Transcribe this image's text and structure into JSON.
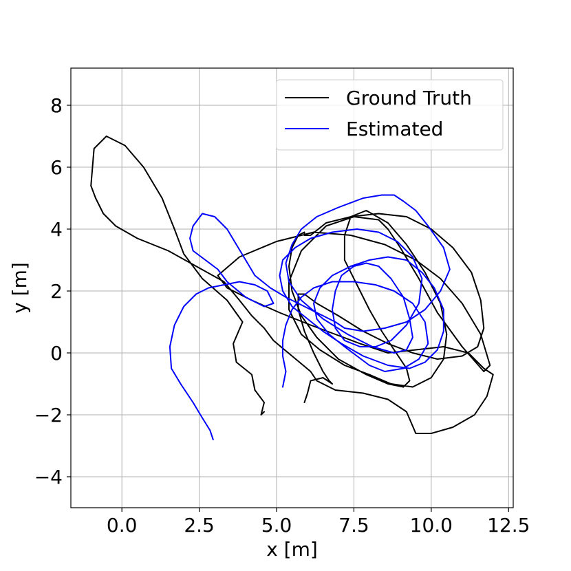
{
  "chart_data": {
    "type": "line",
    "title": "",
    "xlabel": "x [m]",
    "ylabel": "y [m]",
    "xlim": [
      -1.65,
      12.65
    ],
    "ylim": [
      -5.0,
      9.2
    ],
    "xticks": [
      0.0,
      2.5,
      5.0,
      7.5,
      10.0,
      12.5
    ],
    "xtick_labels": [
      "0.0",
      "2.5",
      "5.0",
      "7.5",
      "10.0",
      "12.5"
    ],
    "yticks": [
      -4,
      -2,
      0,
      2,
      4,
      6,
      8
    ],
    "ytick_labels": [
      "−4",
      "−2",
      "0",
      "2",
      "4",
      "6",
      "8"
    ],
    "grid": true,
    "legend_position": "top-right",
    "series": [
      {
        "name": "Ground Truth",
        "color": "#000000",
        "x": [
          4.6,
          4.5,
          4.6,
          4.3,
          4.2,
          3.7,
          3.6,
          3.9,
          3.4,
          2.6,
          2.0,
          1.7,
          1.3,
          0.7,
          0.1,
          -0.5,
          -0.9,
          -1.0,
          -0.85,
          -0.6,
          -0.2,
          0.5,
          1.5,
          2.4,
          3.3,
          3.8,
          4.2,
          4.6,
          4.9,
          5.5,
          6.1,
          6.3,
          6.9,
          7.8,
          8.6,
          9.2,
          9.5,
          10.0,
          10.7,
          11.4,
          11.8,
          12.0,
          11.7,
          11.2,
          10.4,
          9.5,
          8.6,
          7.7,
          6.9,
          6.1,
          5.1,
          4.2,
          3.4,
          3.1,
          3.8,
          5.0,
          6.2,
          7.4,
          8.5,
          9.5,
          10.3,
          11.0,
          11.6,
          11.9,
          11.7,
          11.0,
          10.2,
          9.6,
          9.0,
          8.6,
          8.3,
          7.5,
          6.6,
          5.8,
          5.4,
          5.4,
          5.8,
          6.4,
          7.2,
          8.0,
          8.7,
          9.4,
          10.0,
          10.4,
          10.5,
          10.3,
          9.8,
          9.2,
          8.6,
          7.9,
          7.4,
          7.2,
          7.2,
          7.6,
          8.0,
          8.4,
          8.8,
          9.2,
          9.3,
          9.1,
          8.6,
          7.9,
          7.0,
          6.3,
          5.8,
          5.5,
          5.4,
          5.5,
          5.7,
          5.9,
          5.9,
          6.1,
          6.6,
          7.4,
          8.3,
          9.2,
          10.0,
          10.7,
          11.3,
          11.6,
          11.7,
          11.5,
          11.0,
          10.2,
          9.4,
          8.6,
          7.8,
          7.0,
          6.3,
          5.9,
          5.7,
          5.7,
          5.9,
          6.2,
          6.5,
          6.7,
          6.8,
          6.5,
          6.1,
          6.0,
          5.9
        ],
        "y": [
          -1.9,
          -2.0,
          -1.6,
          -1.2,
          -0.7,
          -0.3,
          0.3,
          1.0,
          1.7,
          2.4,
          3.2,
          4.0,
          5.0,
          6.0,
          6.7,
          7.0,
          6.6,
          5.4,
          5.0,
          4.5,
          4.1,
          3.7,
          3.3,
          2.8,
          2.3,
          1.7,
          1.2,
          0.8,
          0.4,
          -0.1,
          -0.6,
          -0.9,
          -1.2,
          -1.3,
          -1.5,
          -1.9,
          -2.6,
          -2.6,
          -2.4,
          -2.0,
          -1.4,
          -0.7,
          -0.5,
          0.0,
          0.2,
          0.1,
          0.0,
          0.3,
          0.6,
          0.9,
          1.3,
          1.7,
          2.1,
          2.5,
          3.1,
          3.6,
          3.9,
          3.8,
          3.5,
          3.0,
          2.4,
          1.6,
          0.6,
          -0.4,
          -0.6,
          0.2,
          1.3,
          2.4,
          3.4,
          4.0,
          4.3,
          4.4,
          4.1,
          3.3,
          2.3,
          1.4,
          0.6,
          0.1,
          -0.4,
          -0.7,
          -1.0,
          -1.1,
          -0.8,
          -0.2,
          0.6,
          1.6,
          2.6,
          3.5,
          4.2,
          4.6,
          4.4,
          3.8,
          3.0,
          2.2,
          1.4,
          0.7,
          0.1,
          -0.5,
          -0.9,
          -1.1,
          -1.0,
          -0.7,
          -0.2,
          0.5,
          1.2,
          2.0,
          2.8,
          3.4,
          3.8,
          3.9,
          3.8,
          3.8,
          4.2,
          4.4,
          4.5,
          4.4,
          4.0,
          3.4,
          2.6,
          1.7,
          0.8,
          0.2,
          -0.1,
          -0.2,
          0.0,
          0.3,
          0.7,
          1.2,
          1.6,
          1.9,
          1.9,
          1.4,
          0.7,
          0.0,
          -0.6,
          -0.9,
          -1.0,
          -0.8,
          -0.9,
          -1.3,
          -1.6
        ]
      },
      {
        "name": "Estimated",
        "color": "#0000ff",
        "x": [
          2.95,
          2.85,
          2.6,
          2.3,
          1.9,
          1.6,
          1.55,
          1.7,
          2.0,
          2.4,
          2.8,
          3.3,
          3.8,
          4.3,
          4.7,
          4.9,
          4.6,
          4.0,
          3.4,
          3.1,
          2.7,
          2.3,
          2.2,
          2.3,
          2.6,
          3.0,
          3.4,
          3.7,
          4.0,
          4.3,
          4.8,
          5.3,
          5.9,
          6.5,
          6.9,
          7.2,
          7.8,
          8.5,
          9.2,
          9.8,
          10.3,
          10.6,
          10.4,
          9.9,
          9.5,
          9.1,
          8.8,
          8.4,
          7.8,
          7.0,
          6.3,
          5.8,
          5.5,
          5.3,
          5.4,
          5.8,
          6.5,
          7.3,
          8.1,
          8.8,
          9.2,
          9.4,
          9.3,
          9.1,
          8.7,
          8.3,
          7.9,
          7.5,
          7.1,
          6.9,
          6.8,
          6.9,
          7.2,
          7.7,
          8.2,
          8.7,
          9.2,
          9.6,
          9.7,
          9.4,
          8.9,
          8.3,
          7.6,
          6.8,
          6.1,
          5.6,
          5.2,
          5.1,
          5.2,
          5.5,
          6.0,
          6.5,
          7.1,
          7.8,
          8.6,
          9.3,
          9.8,
          10.2,
          10.4,
          10.4,
          10.1,
          9.7,
          9.2,
          8.6,
          8.0,
          7.4,
          6.8,
          6.4,
          6.2,
          6.3,
          6.7,
          7.2,
          7.6,
          8.0,
          8.5,
          9.1,
          9.6,
          9.9,
          9.8,
          9.4,
          8.8,
          8.2,
          7.5,
          6.8,
          6.2,
          5.8,
          5.5,
          5.3,
          5.2,
          5.2,
          5.3,
          5.2
        ],
        "y": [
          -2.8,
          -2.5,
          -2.1,
          -1.6,
          -1.0,
          -0.5,
          0.2,
          0.9,
          1.5,
          1.9,
          2.1,
          2.2,
          2.3,
          2.2,
          2.0,
          1.6,
          1.5,
          1.8,
          2.3,
          2.7,
          3.0,
          3.3,
          3.7,
          4.1,
          4.5,
          4.4,
          4.0,
          3.5,
          3.0,
          2.5,
          2.1,
          1.8,
          1.5,
          1.2,
          1.0,
          0.8,
          0.7,
          0.8,
          1.0,
          1.4,
          2.0,
          2.7,
          3.4,
          4.1,
          4.6,
          4.9,
          5.1,
          5.1,
          5.0,
          4.7,
          4.4,
          4.0,
          3.5,
          2.9,
          2.3,
          1.7,
          1.1,
          0.6,
          0.2,
          0.0,
          0.1,
          0.5,
          1.1,
          1.8,
          2.4,
          2.8,
          2.9,
          2.8,
          2.5,
          2.0,
          1.4,
          0.8,
          0.4,
          0.2,
          0.2,
          0.4,
          0.9,
          1.6,
          2.4,
          3.1,
          3.6,
          3.9,
          4.0,
          3.9,
          3.7,
          3.4,
          3.0,
          2.5,
          2.0,
          1.5,
          1.1,
          0.7,
          0.3,
          -0.1,
          -0.4,
          -0.5,
          -0.3,
          0.1,
          0.7,
          1.4,
          2.1,
          2.6,
          3.0,
          3.1,
          3.0,
          2.8,
          2.5,
          2.1,
          1.6,
          1.1,
          0.6,
          0.2,
          -0.1,
          -0.4,
          -0.6,
          -0.5,
          -0.2,
          0.3,
          1.0,
          1.6,
          2.0,
          2.2,
          2.3,
          2.3,
          2.1,
          1.8,
          1.4,
          0.9,
          0.4,
          -0.1,
          -0.6,
          -1.1
        ]
      }
    ]
  }
}
